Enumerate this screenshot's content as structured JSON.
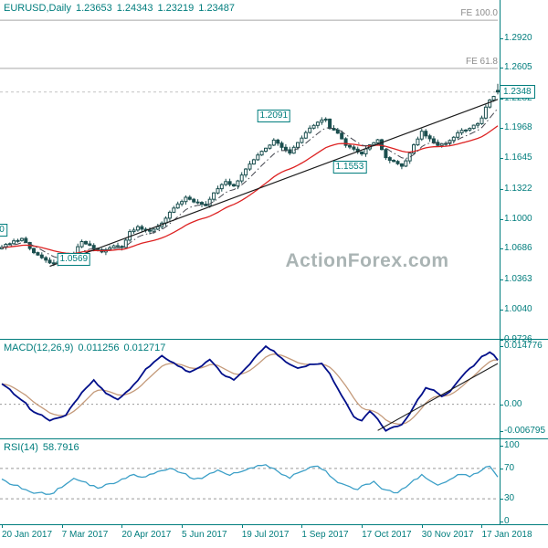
{
  "header": {
    "symbol": "EURUSD,Daily",
    "ohlc": {
      "open": "1.23653",
      "high": "1.24343",
      "low": "1.23219",
      "close": "1.23487"
    }
  },
  "watermark": "ActionForex.com",
  "price_panel": {
    "y_ticks": [
      "1.2920",
      "1.2605",
      "1.2282",
      "1.1968",
      "1.1645",
      "1.1322",
      "1.1000",
      "1.0686",
      "1.0363",
      "1.0040",
      "0.9726"
    ],
    "current_price_label": "1.2348",
    "fe_labels": [
      {
        "text": "FE 100.0",
        "price": 1.311
      },
      {
        "text": "FE 61.8",
        "price": 1.2598
      }
    ],
    "swing_labels": [
      {
        "text": "1.2091",
        "price": 1.2091,
        "index": 68
      },
      {
        "text": "1.1553",
        "price": 1.1553,
        "index": 87
      },
      {
        "text": "1.0569",
        "price": 1.0569,
        "index": 18
      },
      {
        "text": "0",
        "price": 1.088,
        "index": 0,
        "clipped": true
      }
    ]
  },
  "macd_panel": {
    "name": "MACD(12,26,9)",
    "macd_value": "0.011256",
    "signal_value": "0.012717",
    "y_ticks": [
      "0.014776",
      "0.00",
      "-0.006795"
    ]
  },
  "rsi_panel": {
    "name": "RSI(14)",
    "value": "58.7916",
    "y_ticks": [
      "100",
      "70",
      "30",
      "0"
    ]
  },
  "date_axis": [
    {
      "label": "20 Jan 2017",
      "index": 0
    },
    {
      "label": "7 Mar 2017",
      "index": 15
    },
    {
      "label": "20 Apr 2017",
      "index": 30
    },
    {
      "label": "5 Jun 2017",
      "index": 45
    },
    {
      "label": "19 Jul 2017",
      "index": 60
    },
    {
      "label": "1 Sep 2017",
      "index": 75
    },
    {
      "label": "17 Oct 2017",
      "index": 90
    },
    {
      "label": "30 Nov 2017",
      "index": 105
    },
    {
      "label": "17 Jan 2018",
      "index": 120
    }
  ],
  "colors": {
    "frame": "#007d7d",
    "candle": "#1b4f4f",
    "ma_slow": "#dd2222",
    "ma_fast": "#44464f",
    "macd": "#000f8a",
    "macd_signal": "#c49a7a",
    "rsi": "#3b9fc7",
    "fib": "#a6a6a6",
    "trendline": "#1a1a1a",
    "watermark": "#aab4b4"
  },
  "chart_data": [
    {
      "type": "candlestick",
      "instrument": "EURUSD",
      "timeframe": "Daily",
      "date_range": [
        "20 Jan 2017",
        "17 Jan 2018"
      ],
      "n_points": 125,
      "ylim": [
        0.9726,
        1.313
      ],
      "y_ticks": [
        1.292,
        1.2605,
        1.2282,
        1.1968,
        1.1645,
        1.1322,
        1.1,
        1.0686,
        1.0363,
        1.004,
        0.9726
      ],
      "close_keypoints": [
        [
          0,
          1.07
        ],
        [
          3,
          1.077
        ],
        [
          5,
          1.0795
        ],
        [
          8,
          1.0645
        ],
        [
          11,
          1.0565
        ],
        [
          13,
          1.0528
        ],
        [
          16,
          1.0569
        ],
        [
          18,
          1.0632
        ],
        [
          20,
          1.0762
        ],
        [
          22,
          1.0722
        ],
        [
          25,
          1.0652
        ],
        [
          28,
          1.0718
        ],
        [
          30,
          1.07
        ],
        [
          32,
          1.0868
        ],
        [
          34,
          1.092
        ],
        [
          37,
          1.0872
        ],
        [
          40,
          1.0958
        ],
        [
          43,
          1.1118
        ],
        [
          46,
          1.1232
        ],
        [
          48,
          1.1182
        ],
        [
          51,
          1.1142
        ],
        [
          53,
          1.1278
        ],
        [
          56,
          1.1398
        ],
        [
          58,
          1.1352
        ],
        [
          60,
          1.1468
        ],
        [
          63,
          1.163
        ],
        [
          66,
          1.1752
        ],
        [
          68,
          1.1838
        ],
        [
          70,
          1.1762
        ],
        [
          72,
          1.17
        ],
        [
          74,
          1.1812
        ],
        [
          76,
          1.1918
        ],
        [
          79,
          1.2028
        ],
        [
          81,
          1.2061
        ],
        [
          82,
          1.1962
        ],
        [
          84,
          1.1912
        ],
        [
          86,
          1.1782
        ],
        [
          88,
          1.1742
        ],
        [
          90,
          1.1692
        ],
        [
          92,
          1.1788
        ],
        [
          94,
          1.1842
        ],
        [
          96,
          1.1652
        ],
        [
          98,
          1.1612
        ],
        [
          100,
          1.1562
        ],
        [
          101,
          1.1618
        ],
        [
          103,
          1.1788
        ],
        [
          105,
          1.1932
        ],
        [
          107,
          1.1852
        ],
        [
          109,
          1.1782
        ],
        [
          111,
          1.1802
        ],
        [
          113,
          1.1868
        ],
        [
          115,
          1.1942
        ],
        [
          117,
          1.1962
        ],
        [
          119,
          1.2012
        ],
        [
          120,
          1.2072
        ],
        [
          121,
          1.2188
        ],
        [
          122,
          1.2262
        ],
        [
          123,
          1.2302
        ],
        [
          124,
          1.23487
        ]
      ],
      "last_candle": {
        "open": 1.23653,
        "high": 1.24343,
        "low": 1.23219,
        "close": 1.23487
      },
      "current_price": 1.23487,
      "fib_levels": [
        {
          "label": "FE 100.0",
          "price": 1.311
        },
        {
          "label": "FE 61.8",
          "price": 1.2598
        }
      ],
      "annotations": [
        {
          "text": "1.2091",
          "price": 1.2091
        },
        {
          "text": "1.1553",
          "price": 1.1553
        },
        {
          "text": "1.0569",
          "price": 1.0569
        }
      ],
      "trendline": {
        "from": [
          12,
          1.05
        ],
        "to": [
          124,
          1.227
        ]
      },
      "overlays": [
        {
          "name": "moving-average-slow",
          "style": "solid red"
        },
        {
          "name": "moving-average-fast",
          "style": "dash-dot dark"
        }
      ]
    },
    {
      "type": "line",
      "name": "MACD(12,26,9)",
      "current_values": {
        "macd": 0.011256,
        "signal": 0.012717
      },
      "ylim": [
        -0.0085,
        0.016
      ],
      "y_ticks": [
        0.014776,
        0.0,
        -0.006795
      ],
      "zero_line": true,
      "macd_keypoints": [
        [
          0,
          0.0052
        ],
        [
          4,
          0.0018
        ],
        [
          8,
          -0.002
        ],
        [
          12,
          -0.0042
        ],
        [
          16,
          -0.0028
        ],
        [
          20,
          0.003
        ],
        [
          23,
          0.0062
        ],
        [
          26,
          0.0028
        ],
        [
          29,
          0.0012
        ],
        [
          32,
          0.0038
        ],
        [
          36,
          0.009
        ],
        [
          40,
          0.0124
        ],
        [
          44,
          0.0098
        ],
        [
          47,
          0.0082
        ],
        [
          50,
          0.0098
        ],
        [
          52,
          0.0114
        ],
        [
          55,
          0.0078
        ],
        [
          58,
          0.0062
        ],
        [
          61,
          0.0092
        ],
        [
          64,
          0.0128
        ],
        [
          66,
          0.0148
        ],
        [
          68,
          0.0136
        ],
        [
          71,
          0.0108
        ],
        [
          74,
          0.0092
        ],
        [
          77,
          0.0102
        ],
        [
          80,
          0.0104
        ],
        [
          82,
          0.0078
        ],
        [
          84,
          0.004
        ],
        [
          86,
          0.0005
        ],
        [
          88,
          -0.0032
        ],
        [
          90,
          -0.0042
        ],
        [
          92,
          -0.0018
        ],
        [
          94,
          -0.0038
        ],
        [
          96,
          -0.0068
        ],
        [
          98,
          -0.0058
        ],
        [
          100,
          -0.0052
        ],
        [
          102,
          -0.0024
        ],
        [
          104,
          0.0012
        ],
        [
          106,
          0.0042
        ],
        [
          108,
          0.0036
        ],
        [
          110,
          0.002
        ],
        [
          112,
          0.0032
        ],
        [
          114,
          0.0058
        ],
        [
          116,
          0.0082
        ],
        [
          118,
          0.0098
        ],
        [
          120,
          0.0122
        ],
        [
          122,
          0.0133
        ],
        [
          123,
          0.0126
        ],
        [
          124,
          0.011256
        ]
      ],
      "trendline": {
        "from": [
          94,
          -0.0067
        ],
        "to": [
          124,
          0.0104
        ]
      }
    },
    {
      "type": "line",
      "name": "RSI(14)",
      "current_value": 58.7916,
      "ylim": [
        0,
        100
      ],
      "y_ticks": [
        100,
        70,
        30,
        0
      ],
      "reference_lines": [
        70,
        30
      ],
      "rsi_keypoints": [
        [
          0,
          56
        ],
        [
          3,
          48
        ],
        [
          6,
          42
        ],
        [
          9,
          38
        ],
        [
          12,
          36
        ],
        [
          15,
          45
        ],
        [
          18,
          57
        ],
        [
          21,
          52
        ],
        [
          24,
          44
        ],
        [
          27,
          50
        ],
        [
          30,
          56
        ],
        [
          33,
          62
        ],
        [
          36,
          59
        ],
        [
          39,
          66
        ],
        [
          42,
          70
        ],
        [
          45,
          64
        ],
        [
          48,
          56
        ],
        [
          51,
          60
        ],
        [
          54,
          68
        ],
        [
          57,
          61
        ],
        [
          60,
          66
        ],
        [
          63,
          71
        ],
        [
          66,
          75
        ],
        [
          68,
          70
        ],
        [
          70,
          62
        ],
        [
          72,
          57
        ],
        [
          74,
          64
        ],
        [
          76,
          68
        ],
        [
          79,
          73
        ],
        [
          81,
          67
        ],
        [
          83,
          56
        ],
        [
          85,
          50
        ],
        [
          87,
          46
        ],
        [
          89,
          42
        ],
        [
          91,
          49
        ],
        [
          93,
          53
        ],
        [
          95,
          43
        ],
        [
          97,
          41
        ],
        [
          99,
          38
        ],
        [
          101,
          45
        ],
        [
          103,
          55
        ],
        [
          105,
          62
        ],
        [
          107,
          54
        ],
        [
          109,
          48
        ],
        [
          111,
          52
        ],
        [
          113,
          58
        ],
        [
          115,
          62
        ],
        [
          117,
          59
        ],
        [
          119,
          64
        ],
        [
          121,
          72
        ],
        [
          122,
          73
        ],
        [
          123,
          66
        ],
        [
          124,
          58.7916
        ]
      ]
    }
  ]
}
